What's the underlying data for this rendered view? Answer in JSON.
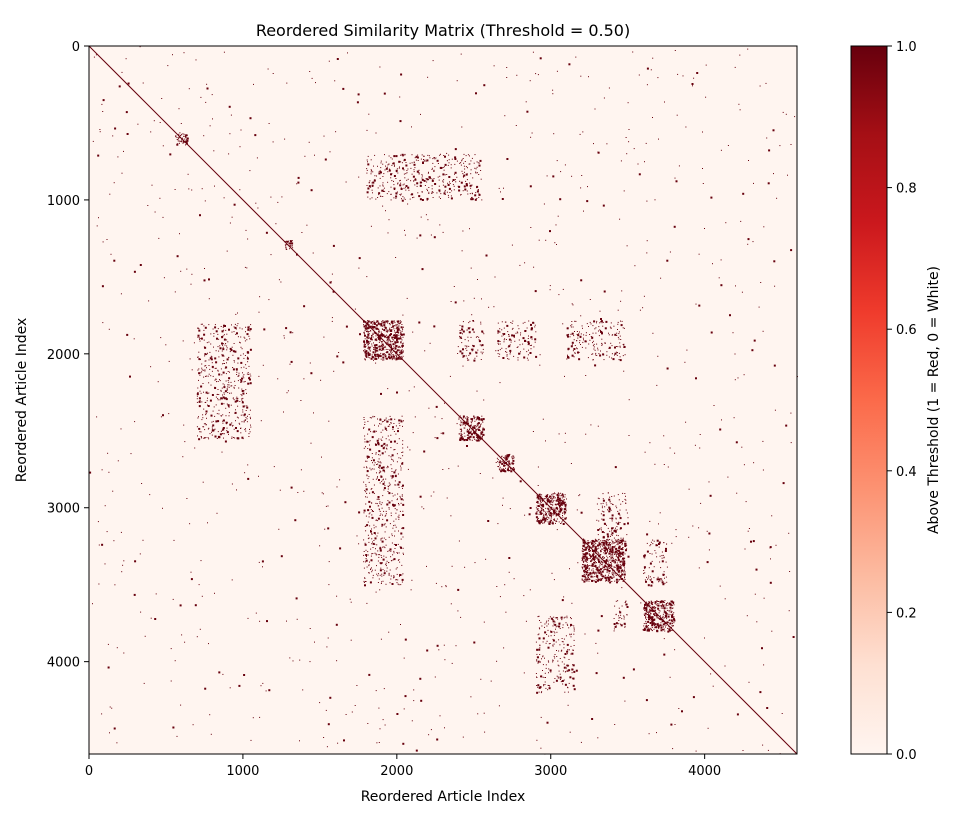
{
  "chart_data": {
    "type": "heatmap",
    "title": "Reordered Similarity Matrix (Threshold = 0.50)",
    "xlabel": "Reordered Article Index",
    "ylabel": "Reordered Article Index",
    "matrix_size": 4600,
    "xlim": [
      0,
      4600
    ],
    "ylim": [
      4600,
      0
    ],
    "x_ticks": [
      0,
      1000,
      2000,
      3000,
      4000
    ],
    "y_ticks": [
      0,
      1000,
      2000,
      3000,
      4000
    ],
    "colorbar": {
      "label": "Above Threshold (1 = Red, 0 = White)",
      "range": [
        0.0,
        1.0
      ],
      "ticks": [
        "0.0",
        "0.2",
        "0.4",
        "0.6",
        "0.8",
        "1.0"
      ],
      "colormap": "Reds",
      "low_color": "#fff5f0",
      "high_color": "#67000d"
    },
    "diagonal_blocks": [
      {
        "start": 560,
        "end": 640
      },
      {
        "start": 1260,
        "end": 1320
      },
      {
        "start": 1780,
        "end": 2040
      },
      {
        "start": 2400,
        "end": 2560
      },
      {
        "start": 2650,
        "end": 2760
      },
      {
        "start": 2900,
        "end": 3100
      },
      {
        "start": 3200,
        "end": 3480
      },
      {
        "start": 3600,
        "end": 3800
      }
    ],
    "off_diagonal_clusters": [
      {
        "x": [
          1780,
          2040
        ],
        "y": [
          2400,
          3500
        ]
      },
      {
        "x": [
          2400,
          2560
        ],
        "y": [
          1780,
          2040
        ]
      },
      {
        "x": [
          2650,
          2900
        ],
        "y": [
          1780,
          2040
        ]
      },
      {
        "x": [
          3100,
          3480
        ],
        "y": [
          1780,
          2040
        ]
      },
      {
        "x": [
          3400,
          3500
        ],
        "y": [
          3600,
          3800
        ]
      },
      {
        "x": [
          3300,
          3500
        ],
        "y": [
          2900,
          3400
        ]
      },
      {
        "x": [
          1800,
          2550
        ],
        "y": [
          700,
          1000
        ]
      },
      {
        "x": [
          700,
          1050
        ],
        "y": [
          1800,
          2550
        ]
      },
      {
        "x": [
          2900,
          3150
        ],
        "y": [
          3700,
          4200
        ]
      },
      {
        "x": [
          3600,
          3750
        ],
        "y": [
          3200,
          3500
        ]
      }
    ]
  }
}
